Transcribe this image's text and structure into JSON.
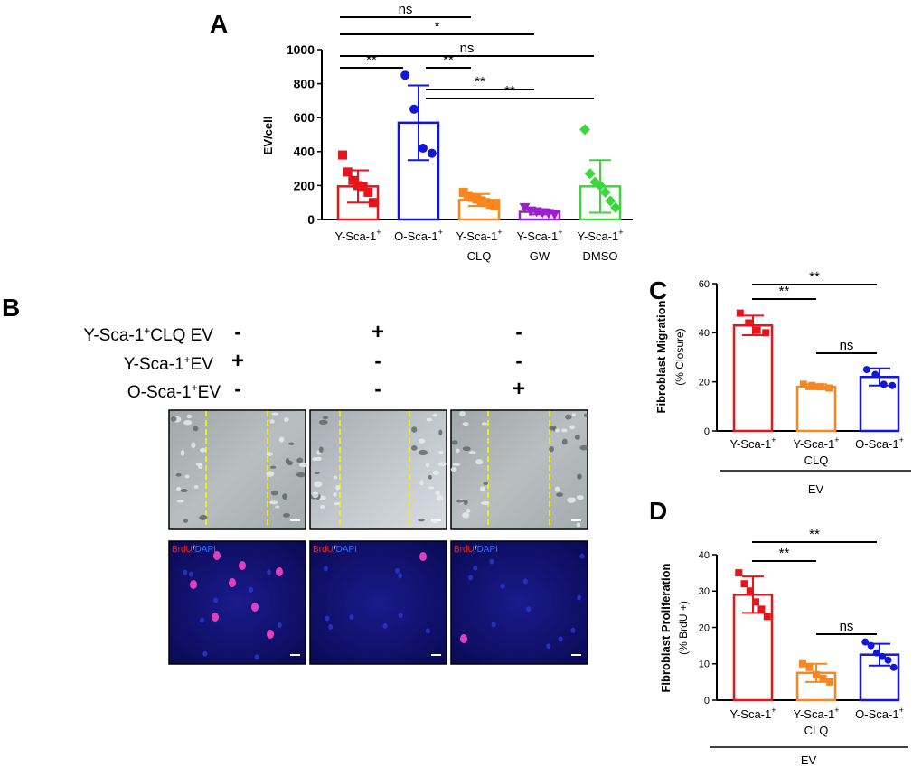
{
  "chart_data": [
    {
      "panel": "A",
      "type": "bar",
      "ylabel": "EV/cell",
      "ylim": [
        0,
        1000
      ],
      "yticks": [
        0,
        200,
        400,
        600,
        800,
        1000
      ],
      "categories": [
        {
          "line1": "Y-Sca-1",
          "sup": "+",
          "line2": ""
        },
        {
          "line1": "O-Sca-1",
          "sup": "+",
          "line2": ""
        },
        {
          "line1": "Y-Sca-1",
          "sup": "+",
          "line2": "CLQ"
        },
        {
          "line1": "Y-Sca-1",
          "sup": "+",
          "line2": "GW"
        },
        {
          "line1": "Y-Sca-1",
          "sup": "+",
          "line2": "DMSO"
        }
      ],
      "colors": [
        "#e8141b",
        "#1216d8",
        "#f7871e",
        "#9b1fd0",
        "#3bd63b"
      ],
      "markers": [
        "square",
        "circle",
        "square",
        "triangle-down",
        "diamond"
      ],
      "values": [
        195,
        570,
        115,
        45,
        195
      ],
      "errors": [
        95,
        220,
        35,
        15,
        155
      ],
      "points": [
        [
          380,
          280,
          230,
          200,
          195,
          160,
          100
        ],
        [
          850,
          650,
          420,
          390
        ],
        [
          160,
          140,
          130,
          120,
          110,
          100,
          90,
          80
        ],
        [
          70,
          50,
          45,
          40,
          35,
          30
        ],
        [
          530,
          270,
          220,
          200,
          160,
          110,
          70
        ]
      ],
      "significance": [
        {
          "a": 0,
          "b": 2,
          "label": "ns"
        },
        {
          "a": 0,
          "b": 3,
          "label": "*"
        },
        {
          "a": 0,
          "b": 4,
          "label": "ns"
        },
        {
          "a": 0,
          "b": 1,
          "label": "**"
        },
        {
          "a": 1,
          "b": 2,
          "label": "**"
        },
        {
          "a": 1,
          "b": 3,
          "label": "**"
        },
        {
          "a": 1,
          "b": 4,
          "label": "**"
        }
      ]
    },
    {
      "panel": "C",
      "type": "bar",
      "ylabel_main": "Fibroblast Migration",
      "ylabel_sub": "(% Closure)",
      "ylim": [
        0,
        60
      ],
      "yticks": [
        0,
        20,
        40,
        60
      ],
      "categories": [
        {
          "line1": "Y-Sca-1",
          "sup": "+",
          "line2": ""
        },
        {
          "line1": "Y-Sca-1",
          "sup": "+",
          "line2": "CLQ"
        },
        {
          "line1": "O-Sca-1",
          "sup": "+",
          "line2": ""
        }
      ],
      "group_label": "EV",
      "colors": [
        "#e8141b",
        "#f7871e",
        "#1216d8"
      ],
      "markers": [
        "square",
        "square",
        "circle"
      ],
      "values": [
        43,
        18,
        22
      ],
      "errors": [
        4,
        1,
        3.5
      ],
      "points": [
        [
          48,
          44,
          41,
          40
        ],
        [
          19,
          18.5,
          18,
          17.5
        ],
        [
          25,
          23,
          19,
          18.5
        ]
      ],
      "significance": [
        {
          "a": 0,
          "b": 2,
          "label": "**"
        },
        {
          "a": 0,
          "b": 1,
          "label": "**"
        },
        {
          "a": 1,
          "b": 2,
          "label": "ns"
        }
      ]
    },
    {
      "panel": "D",
      "type": "bar",
      "ylabel_main": "Fibroblast Proliferation",
      "ylabel_sub": "(% BrdU +)",
      "ylim": [
        0,
        40
      ],
      "yticks": [
        0,
        10,
        20,
        30,
        40
      ],
      "categories": [
        {
          "line1": "Y-Sca-1",
          "sup": "+",
          "line2": ""
        },
        {
          "line1": "Y-Sca-1",
          "sup": "+",
          "line2": "CLQ"
        },
        {
          "line1": "O-Sca-1",
          "sup": "+",
          "line2": ""
        }
      ],
      "group_label": "EV",
      "colors": [
        "#e8141b",
        "#f7871e",
        "#1216d8"
      ],
      "markers": [
        "square",
        "square",
        "circle"
      ],
      "values": [
        29,
        7.5,
        12.5
      ],
      "errors": [
        5,
        2.5,
        3
      ],
      "points": [
        [
          35,
          32,
          30,
          27,
          25,
          23
        ],
        [
          10,
          9,
          7,
          6,
          5
        ],
        [
          16,
          15,
          13,
          12,
          11,
          9
        ]
      ],
      "significance": [
        {
          "a": 0,
          "b": 2,
          "label": "**"
        },
        {
          "a": 0,
          "b": 1,
          "label": "**"
        },
        {
          "a": 1,
          "b": 2,
          "label": "ns"
        }
      ]
    }
  ],
  "panel_b": {
    "letter": "B",
    "rows": [
      {
        "label": "Y-Sca-1",
        "sup": "+",
        "suffix": "CLQ EV",
        "signs": [
          "-",
          "+",
          "-"
        ]
      },
      {
        "label": "Y-Sca-1",
        "sup": "+",
        "suffix": "EV",
        "signs": [
          "+",
          "-",
          "-"
        ]
      },
      {
        "label": "O-Sca-1",
        "sup": "+",
        "suffix": "EV",
        "signs": [
          "-",
          "-",
          "+"
        ]
      }
    ],
    "stain_label_red": "BrdU",
    "stain_label_sep": "/",
    "stain_label_blue": "DAPI"
  }
}
